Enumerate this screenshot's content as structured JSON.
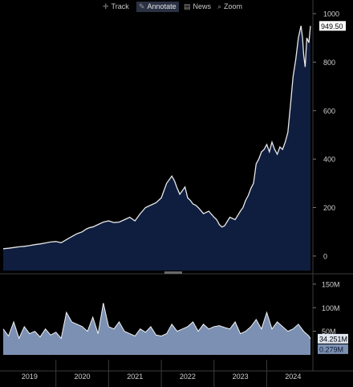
{
  "toolbar": {
    "items": [
      {
        "label": "Track",
        "icon": "crosshair-icon"
      },
      {
        "label": "Annotate",
        "icon": "pencil-icon"
      },
      {
        "label": "News",
        "icon": "news-icon"
      },
      {
        "label": "Zoom",
        "icon": "magnifier-icon"
      }
    ]
  },
  "colors": {
    "background": "#000000",
    "price_fill": "#0f1e3f",
    "price_line": "#e8e8e8",
    "volume_fill": "#7b90b2",
    "volume_line": "#f2f2f2",
    "last_price_box": "#ffffff",
    "volume_box": "#dfe6f0",
    "volume_avg_box": "#7b90b2",
    "grid": "#3a3a3a"
  },
  "chart_data": [
    {
      "type": "area",
      "title": "",
      "xlabel": "",
      "ylabel": "",
      "ylim": [
        -60,
        1010
      ],
      "yticks": [
        "1000",
        "800",
        "600",
        "400",
        "200",
        "0"
      ],
      "ytick_values": [
        1000,
        800,
        600,
        400,
        200,
        0
      ],
      "last_value_label": "949.50",
      "last_value": 949.5,
      "xlim": [
        2018.5,
        2024.33
      ],
      "series": [
        {
          "x": [
            2018.5,
            2018.6,
            2018.7,
            2018.8,
            2018.9,
            2019.0,
            2019.1,
            2019.2,
            2019.3,
            2019.4,
            2019.5,
            2019.6,
            2019.7,
            2019.8,
            2019.9,
            2020.0,
            2020.08,
            2020.15,
            2020.2,
            2020.3,
            2020.4,
            2020.5,
            2020.6,
            2020.7,
            2020.8,
            2020.9,
            2021.0,
            2021.1,
            2021.2,
            2021.3,
            2021.4,
            2021.5,
            2021.6,
            2021.7,
            2021.75,
            2021.8,
            2021.85,
            2021.9,
            2021.95,
            2022.0,
            2022.05,
            2022.1,
            2022.15,
            2022.2,
            2022.3,
            2022.4,
            2022.5,
            2022.55,
            2022.6,
            2022.65,
            2022.7,
            2022.8,
            2022.9,
            2023.0,
            2023.05,
            2023.1,
            2023.15,
            2023.2,
            2023.25,
            2023.3,
            2023.35,
            2023.4,
            2023.45,
            2023.5,
            2023.55,
            2023.6,
            2023.65,
            2023.7,
            2023.75,
            2023.8,
            2023.85,
            2023.9,
            2023.95,
            2024.0,
            2024.05,
            2024.1,
            2024.15,
            2024.18,
            2024.2,
            2024.23,
            2024.26,
            2024.3,
            2024.33
          ],
          "values": [
            30,
            32,
            35,
            38,
            40,
            43,
            47,
            50,
            54,
            58,
            60,
            55,
            68,
            80,
            92,
            100,
            112,
            118,
            120,
            130,
            140,
            145,
            138,
            140,
            150,
            160,
            145,
            175,
            200,
            210,
            220,
            240,
            300,
            330,
            310,
            280,
            255,
            270,
            285,
            240,
            230,
            215,
            210,
            200,
            175,
            185,
            160,
            150,
            130,
            120,
            125,
            160,
            150,
            185,
            200,
            230,
            250,
            280,
            300,
            380,
            400,
            430,
            440,
            460,
            430,
            470,
            440,
            420,
            450,
            440,
            470,
            510,
            620,
            740,
            810,
            900,
            950,
            900,
            830,
            780,
            900,
            880,
            949.5
          ]
        }
      ]
    },
    {
      "type": "area",
      "title": "",
      "xlabel": "",
      "ylabel": "",
      "ylim": [
        0,
        160
      ],
      "ytick_labels": [
        "150M",
        "100M",
        "50M"
      ],
      "ytick_values": [
        150,
        100,
        50
      ],
      "unit": "M",
      "last_volume_label": "34.251M",
      "last_volume": 34.251,
      "avg_volume_label": "0.279M",
      "xlim": [
        2018.5,
        2024.33
      ],
      "xtick_labels": [
        "2019",
        "2020",
        "2021",
        "2022",
        "2023",
        "2024"
      ],
      "xtick_values": [
        2019,
        2020,
        2021,
        2022,
        2023,
        2024
      ],
      "series": [
        {
          "x": [
            2018.5,
            2018.6,
            2018.7,
            2018.8,
            2018.9,
            2019.0,
            2019.1,
            2019.2,
            2019.3,
            2019.4,
            2019.5,
            2019.6,
            2019.7,
            2019.8,
            2019.9,
            2020.0,
            2020.1,
            2020.2,
            2020.3,
            2020.4,
            2020.5,
            2020.6,
            2020.7,
            2020.8,
            2020.9,
            2021.0,
            2021.1,
            2021.2,
            2021.3,
            2021.4,
            2021.5,
            2021.6,
            2021.7,
            2021.8,
            2021.9,
            2022.0,
            2022.1,
            2022.2,
            2022.3,
            2022.4,
            2022.5,
            2022.6,
            2022.7,
            2022.8,
            2022.9,
            2023.0,
            2023.1,
            2023.2,
            2023.3,
            2023.4,
            2023.5,
            2023.6,
            2023.7,
            2023.8,
            2023.9,
            2024.0,
            2024.1,
            2024.2,
            2024.3,
            2024.33
          ],
          "values": [
            55,
            40,
            70,
            35,
            60,
            45,
            50,
            38,
            55,
            42,
            48,
            35,
            90,
            70,
            65,
            60,
            50,
            80,
            45,
            110,
            60,
            55,
            70,
            50,
            45,
            40,
            55,
            48,
            60,
            42,
            40,
            45,
            65,
            50,
            55,
            60,
            70,
            50,
            65,
            55,
            60,
            62,
            58,
            55,
            70,
            45,
            50,
            60,
            75,
            55,
            90,
            55,
            70,
            60,
            50,
            55,
            65,
            50,
            40,
            34.251
          ]
        }
      ]
    }
  ]
}
